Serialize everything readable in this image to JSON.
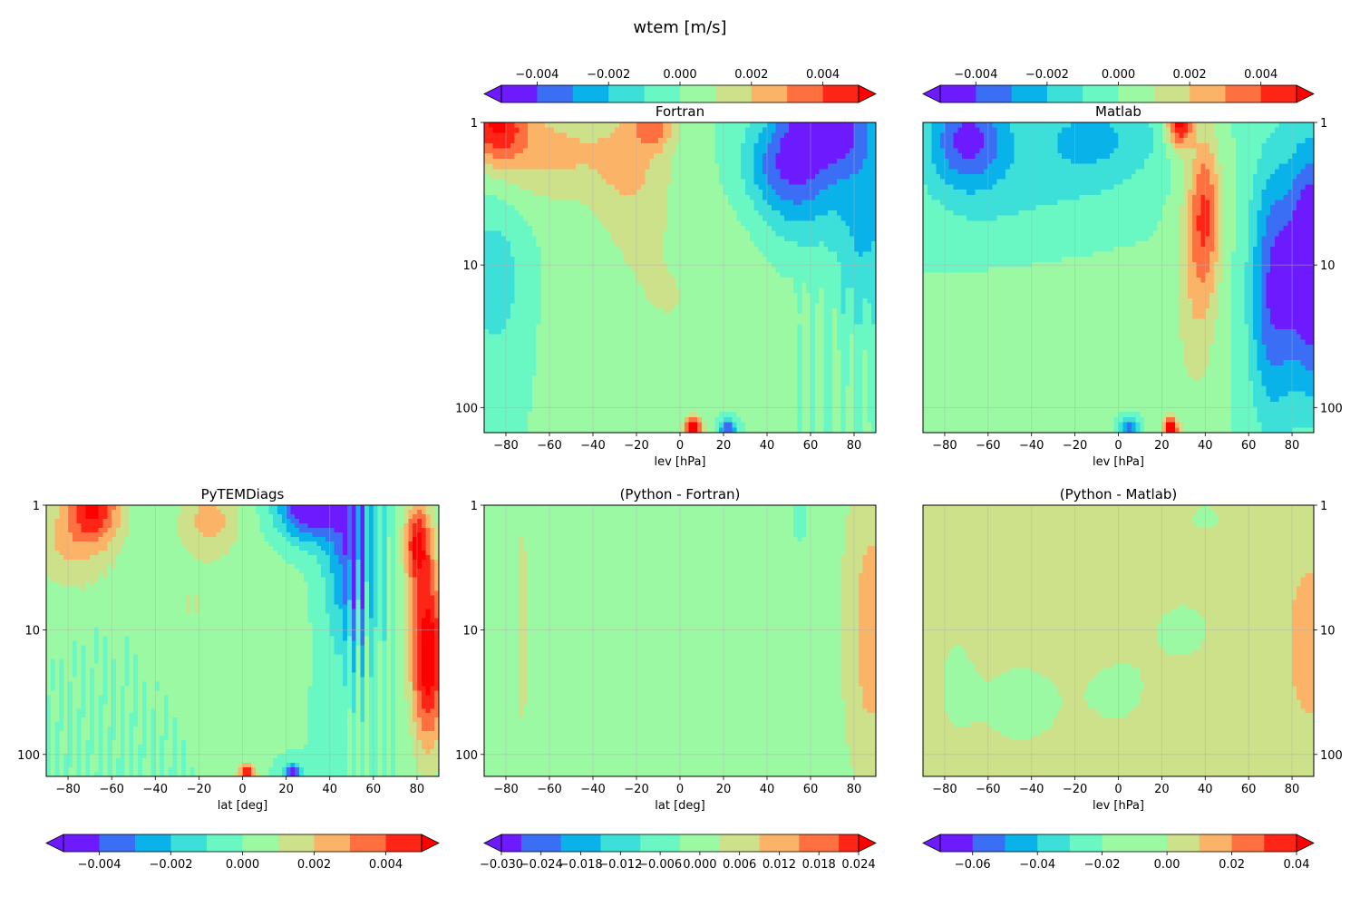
{
  "figure": {
    "suptitle": "wtem [m/s]"
  },
  "colormap": [
    "#6e1aff",
    "#3a6ef5",
    "#09b2e8",
    "#3ce0d8",
    "#69f7c3",
    "#9bf9a4",
    "#cde08a",
    "#fbb467",
    "#ff7041",
    "#ff2516",
    "#ff0000"
  ],
  "chart_data": [
    {
      "type": "contour",
      "title": "Fortran",
      "xlabel": "lev [hPa]",
      "ylabel": "",
      "xlim": [
        -90,
        90
      ],
      "ylim": [
        1,
        150
      ],
      "yscale": "log",
      "xticks": [
        "−80",
        "−60",
        "−40",
        "−20",
        "0",
        "20",
        "40",
        "60",
        "80"
      ],
      "yticks": [
        "1",
        "10",
        "100"
      ],
      "y_axis_side": "left",
      "grid": true,
      "colorbar": {
        "location": "top",
        "levels": [
          -0.005,
          -0.004,
          -0.003,
          -0.002,
          -0.001,
          0.0,
          0.001,
          0.002,
          0.003,
          0.004,
          0.005
        ],
        "ticks": [
          "−0.004",
          "−0.002",
          "0.000",
          "0.002",
          "0.004"
        ],
        "extend": "both"
      },
      "field": "fortran"
    },
    {
      "type": "contour",
      "title": "Matlab",
      "xlabel": "lev [hPa]",
      "ylabel": "",
      "xlim": [
        -90,
        90
      ],
      "ylim": [
        1,
        150
      ],
      "yscale": "log",
      "xticks": [
        "−80",
        "−60",
        "−40",
        "−20",
        "0",
        "20",
        "40",
        "60",
        "80"
      ],
      "yticks": [
        "1",
        "10",
        "100"
      ],
      "y_axis_side": "right",
      "grid": true,
      "colorbar": {
        "location": "top",
        "levels": [
          -0.005,
          -0.004,
          -0.003,
          -0.002,
          -0.001,
          0.0,
          0.001,
          0.002,
          0.003,
          0.004,
          0.005
        ],
        "ticks": [
          "−0.004",
          "−0.002",
          "0.000",
          "0.002",
          "0.004"
        ],
        "extend": "both"
      },
      "field": "matlab"
    },
    {
      "type": "contour",
      "title": "PyTEMDiags",
      "xlabel": "lat [deg]",
      "ylabel": "",
      "xlim": [
        -90,
        90
      ],
      "ylim": [
        1,
        150
      ],
      "yscale": "log",
      "xticks": [
        "−80",
        "−60",
        "−40",
        "−20",
        "0",
        "20",
        "40",
        "60",
        "80"
      ],
      "yticks": [
        "1",
        "10",
        "100"
      ],
      "y_axis_side": "left",
      "grid": true,
      "colorbar": {
        "location": "bottom",
        "levels": [
          -0.005,
          -0.004,
          -0.003,
          -0.002,
          -0.001,
          0.0,
          0.001,
          0.002,
          0.003,
          0.004,
          0.005
        ],
        "ticks": [
          "−0.004",
          "−0.002",
          "0.000",
          "0.002",
          "0.004"
        ],
        "extend": "both"
      },
      "field": "python"
    },
    {
      "type": "contour",
      "title": "(Python - Fortran)",
      "xlabel": "lat [deg]",
      "ylabel": "",
      "xlim": [
        -90,
        90
      ],
      "ylim": [
        1,
        150
      ],
      "yscale": "log",
      "xticks": [
        "−80",
        "−60",
        "−40",
        "−20",
        "0",
        "20",
        "40",
        "60",
        "80"
      ],
      "yticks": [
        "1",
        "10",
        "100"
      ],
      "y_axis_side": "left",
      "grid": true,
      "colorbar": {
        "location": "bottom",
        "levels": [
          -0.03,
          -0.027,
          -0.024,
          -0.021,
          -0.018,
          -0.015,
          -0.012,
          -0.009,
          -0.006,
          -0.003,
          0.0,
          0.003,
          0.006,
          0.009,
          0.012,
          0.015,
          0.018,
          0.021,
          0.024
        ],
        "ticks": [
          "−0.030",
          "−0.024",
          "−0.018",
          "−0.012",
          "−0.006",
          "0.000",
          "0.006",
          "0.012",
          "0.018",
          "0.024"
        ],
        "extend": "both"
      },
      "field": "diff_fortran"
    },
    {
      "type": "contour",
      "title": "(Python - Matlab)",
      "xlabel": "lev [hPa]",
      "ylabel": "",
      "xlim": [
        -90,
        90
      ],
      "ylim": [
        1,
        150
      ],
      "yscale": "log",
      "xticks": [
        "−80",
        "−60",
        "−40",
        "−20",
        "0",
        "20",
        "40",
        "60",
        "80"
      ],
      "yticks": [
        "1",
        "10",
        "100"
      ],
      "y_axis_side": "right",
      "grid": true,
      "colorbar": {
        "location": "bottom",
        "levels": [
          -0.07,
          -0.06,
          -0.05,
          -0.04,
          -0.03,
          -0.02,
          -0.01,
          0.0,
          0.01,
          0.02,
          0.03,
          0.04
        ],
        "ticks": [
          "−0.06",
          "−0.04",
          "−0.02",
          "0.00",
          "0.02",
          "0.04"
        ],
        "extend": "both"
      },
      "field": "diff_matlab"
    }
  ]
}
